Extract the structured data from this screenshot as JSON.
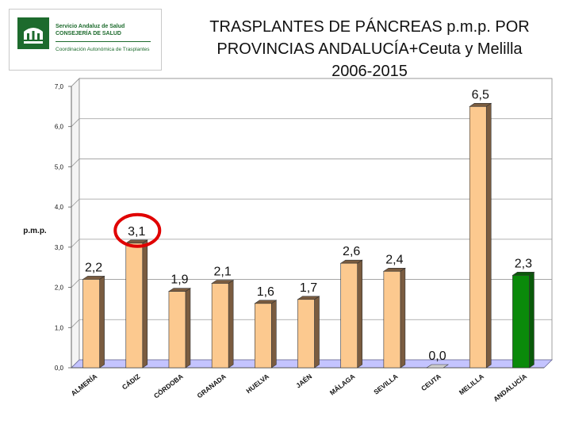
{
  "logo": {
    "line1": "Servicio Andaluz de Salud",
    "line2": "CONSEJERÍA DE SALUD",
    "line3": "Coordinación Autonómica de Trasplantes",
    "emblem": "junta-andalucia-emblem"
  },
  "title_lines": [
    "TRASPLANTES DE PÁNCREAS p.m.p. POR",
    "PROVINCIAS ANDALUCÍA+Ceuta y Melilla",
    "2006-2015"
  ],
  "chart_data": {
    "type": "bar",
    "ylabel": "p.m.p.",
    "ylim": [
      0,
      7
    ],
    "yticks": [
      "0,0",
      "1,0",
      "2,0",
      "3,0",
      "4,0",
      "5,0",
      "6,0",
      "7,0"
    ],
    "categories": [
      "ALMERÍA",
      "CÁDIZ",
      "CÓRDOBA",
      "GRANADA",
      "HUELVA",
      "JAÉN",
      "MÁLAGA",
      "SEVILLA",
      "CEUTA",
      "MELILLA",
      "ANDALUCÍA"
    ],
    "values": [
      2.2,
      3.1,
      1.9,
      2.1,
      1.6,
      1.7,
      2.6,
      2.4,
      0.0,
      6.5,
      2.3
    ],
    "value_labels": [
      "2,2",
      "3,1",
      "1,9",
      "2,1",
      "1,6",
      "1,7",
      "2,6",
      "2,4",
      "0,0",
      "6,5",
      "2,3"
    ],
    "highlighted_category": "CÁDIZ",
    "colors": {
      "bar": "#fcc98f",
      "bar_side": "#7a5c40",
      "total_bar": "#0a8a0a",
      "total_side": "#0a5a0a",
      "floor": "#c4c4ff",
      "highlight_circle": "#e00000"
    }
  }
}
